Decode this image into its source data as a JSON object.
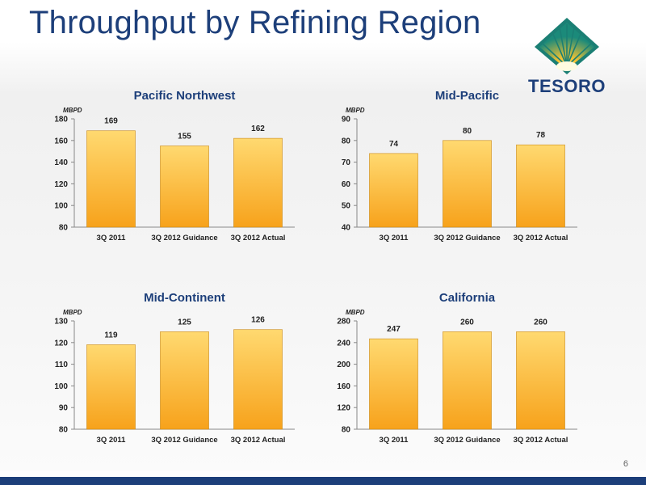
{
  "slide": {
    "title": "Throughput by Refining Region",
    "page_number": "6"
  },
  "logo": {
    "text": "TESORO",
    "icon": "tesoro-starburst-logo"
  },
  "colors": {
    "title": "#1d3f7a",
    "bar_top": "#ffd970",
    "bar_bottom": "#f7a21b",
    "bottom_bar": "#1d3f7a"
  },
  "chart_data": [
    {
      "type": "bar",
      "title": "Pacific Northwest",
      "unit": "MBPD",
      "categories": [
        "3Q 2011",
        "3Q 2012 Guidance",
        "3Q 2012 Actual"
      ],
      "values": [
        169,
        155,
        162
      ],
      "ylim": [
        80,
        180
      ],
      "yticks": [
        80,
        100,
        120,
        140,
        160,
        180
      ],
      "grid": false,
      "legend": "none"
    },
    {
      "type": "bar",
      "title": "Mid-Pacific",
      "unit": "MBPD",
      "categories": [
        "3Q 2011",
        "3Q 2012 Guidance",
        "3Q 2012 Actual"
      ],
      "values": [
        74,
        80,
        78
      ],
      "ylim": [
        40,
        90
      ],
      "yticks": [
        40,
        50,
        60,
        70,
        80,
        90
      ],
      "grid": false,
      "legend": "none"
    },
    {
      "type": "bar",
      "title": "Mid-Continent",
      "unit": "MBPD",
      "categories": [
        "3Q 2011",
        "3Q 2012 Guidance",
        "3Q 2012 Actual"
      ],
      "values": [
        119,
        125,
        126
      ],
      "ylim": [
        80,
        130
      ],
      "yticks": [
        80,
        90,
        100,
        110,
        120,
        130
      ],
      "grid": false,
      "legend": "none"
    },
    {
      "type": "bar",
      "title": "California",
      "unit": "MBPD",
      "categories": [
        "3Q 2011",
        "3Q 2012 Guidance",
        "3Q 2012 Actual"
      ],
      "values": [
        247,
        260,
        260
      ],
      "ylim": [
        80,
        280
      ],
      "yticks": [
        80,
        120,
        160,
        200,
        240,
        280
      ],
      "grid": false,
      "legend": "none"
    }
  ]
}
